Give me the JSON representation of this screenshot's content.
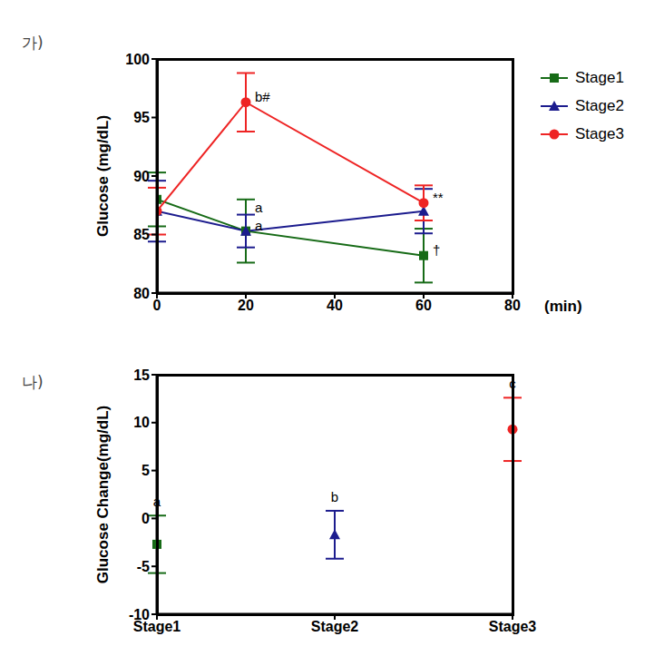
{
  "chart_data": [
    {
      "type": "line",
      "panel": "가)",
      "y_label": "Glucose (mg/dL)",
      "x_label": "(min)",
      "x": [
        0,
        20,
        60
      ],
      "xlim": [
        0,
        80
      ],
      "xticks": [
        0,
        20,
        40,
        60,
        80
      ],
      "ylim": [
        80,
        100
      ],
      "yticks": [
        80,
        85,
        90,
        95,
        100
      ],
      "legend": "right",
      "series": [
        {
          "name": "Stage1",
          "color": "#176b17",
          "marker": "square",
          "values": [
            88,
            85.3,
            83.2
          ],
          "errors": [
            2.3,
            2.7,
            2.3
          ],
          "annotations": [
            null,
            "a",
            "†"
          ]
        },
        {
          "name": "Stage2",
          "color": "#1c1c8e",
          "marker": "triangle",
          "values": [
            87,
            85.3,
            87
          ],
          "errors": [
            2.6,
            1.4,
            1.9
          ],
          "annotations": [
            null,
            "a",
            null
          ]
        },
        {
          "name": "Stage3",
          "color": "#ee2424",
          "marker": "circle",
          "values": [
            87,
            96.3,
            87.7
          ],
          "errors": [
            2,
            2.5,
            1.5
          ],
          "annotations": [
            null,
            "b#",
            "**"
          ]
        }
      ]
    },
    {
      "type": "scatter",
      "panel": "나)",
      "y_label": "Glucose Change(mg/dL)",
      "categories": [
        "Stage1",
        "Stage2",
        "Stage3"
      ],
      "values": [
        -2.7,
        -1.7,
        9.3
      ],
      "errors": [
        3,
        2.5,
        3.3
      ],
      "colors": [
        "#176b17",
        "#1c1c8e",
        "#ee2424"
      ],
      "markers": [
        "square",
        "triangle",
        "circle"
      ],
      "point_labels": [
        "a",
        "b",
        "c"
      ],
      "ylim": [
        -10,
        15
      ],
      "yticks": [
        -10,
        -5,
        0,
        5,
        10,
        15
      ]
    }
  ]
}
